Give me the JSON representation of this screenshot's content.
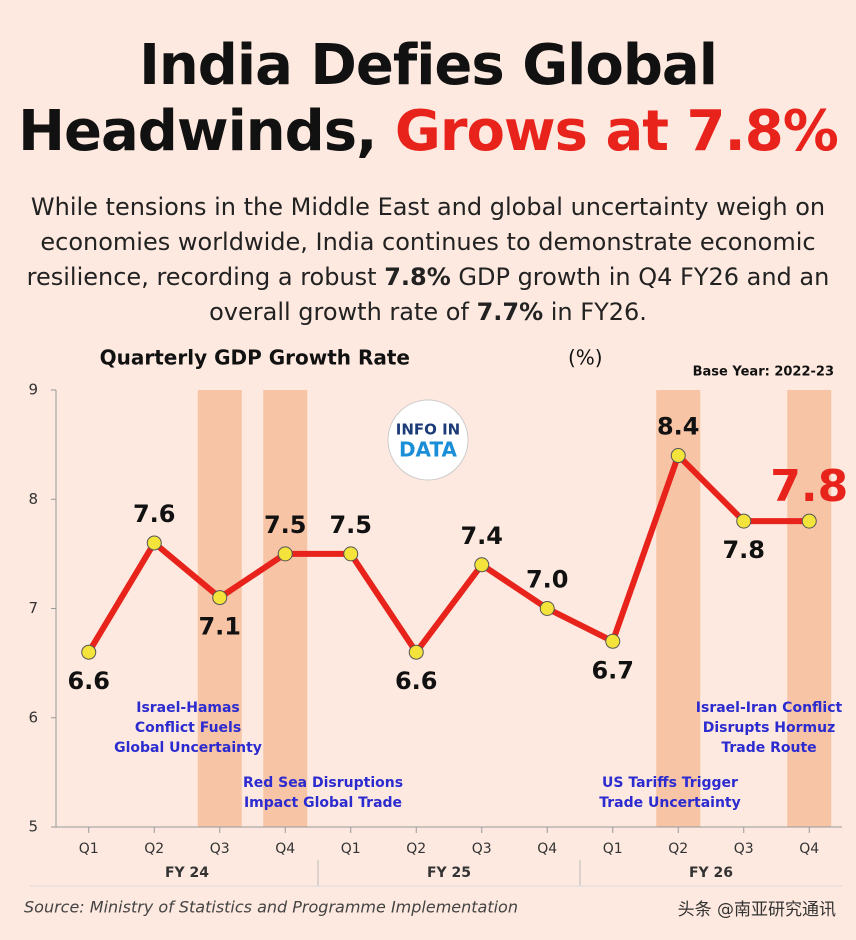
{
  "title_parts": [
    "India Defies Global",
    "Headwinds,",
    "Grows at 7.8%"
  ],
  "subtitle_parts": [
    "While tensions in the Middle East and global uncertainty weigh on economies worldwide, India continues to demonstrate economic resilience, recording a robust ",
    "7.8%",
    " GDP growth in Q4 FY26 and an overall growth rate of ",
    "7.7%",
    " in FY26."
  ],
  "chart_data": {
    "type": "line",
    "title": "Quarterly GDP Growth Rate",
    "unit": "(%)",
    "note": "Base Year: 2022-23",
    "categories": [
      "Q1",
      "Q2",
      "Q3",
      "Q4",
      "Q1",
      "Q2",
      "Q3",
      "Q4",
      "Q1",
      "Q2",
      "Q3",
      "Q4"
    ],
    "groups": [
      "FY 24",
      "FY 25",
      "FY 26"
    ],
    "values": [
      6.6,
      7.6,
      7.1,
      7.5,
      7.5,
      6.6,
      7.4,
      7.0,
      6.7,
      8.4,
      7.8,
      7.8
    ],
    "value_labels": [
      "6.6",
      "7.6",
      "7.1",
      "7.5",
      "7.5",
      "6.6",
      "7.4",
      "7.0",
      "6.7",
      "8.4",
      "7.8",
      "7.8"
    ],
    "color": "#e8231c",
    "marker_color": "#f3e33a",
    "highlighted_categories": [
      2,
      3,
      9,
      11
    ],
    "highlight_color": "#f7c4a6",
    "annotations": [
      [
        "Israel-Hamas",
        "Conflict Fuels",
        "Global Uncertainty"
      ],
      [
        "Red Sea Disruptions",
        "Impact Global Trade"
      ],
      [
        "US Tariffs Trigger",
        "Trade Uncertainty"
      ],
      [
        "Israel-Iran Conflict",
        "Disrupts Hormuz",
        "Trade Route"
      ]
    ],
    "ylim": [
      5,
      9
    ],
    "yticks": [
      5,
      6,
      7,
      8,
      9
    ]
  },
  "logo": [
    "INFO IN",
    "DATA"
  ],
  "source": "Source: Ministry of Statistics and Programme Implementation",
  "watermark": "头条 @南亚研究通讯"
}
